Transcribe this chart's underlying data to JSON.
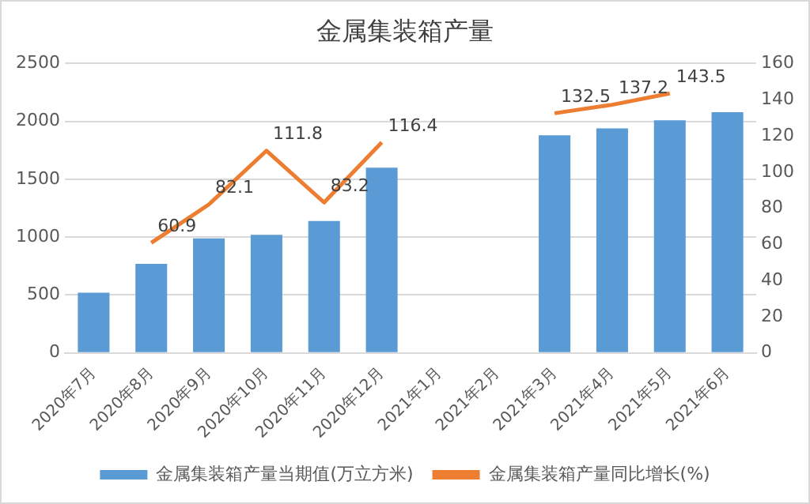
{
  "chart_data": {
    "type": "bar",
    "title": "金属集装箱产量",
    "categories": [
      "2020年7月",
      "2020年8月",
      "2020年9月",
      "2020年10月",
      "2020年11月",
      "2020年12月",
      "2021年1月",
      "2021年2月",
      "2021年3月",
      "2021年4月",
      "2021年5月",
      "2021年6月"
    ],
    "series": [
      {
        "name": "金属集装箱产量当期值(万立方米)",
        "color": "#5b9bd5",
        "values": [
          520,
          770,
          990,
          1020,
          1140,
          1600,
          null,
          null,
          1880,
          1940,
          2010,
          2080
        ]
      },
      {
        "name": "金属集装箱产量同比增长(%)",
        "type": "line",
        "axis": "y2",
        "color": "#ed7d31",
        "values": [
          null,
          60.9,
          82.1,
          111.8,
          83.2,
          116.4,
          null,
          null,
          132.5,
          137.2,
          143.5,
          null
        ],
        "value_labels": [
          null,
          "60.9",
          "82.1",
          "111.8",
          "83.2",
          "116.4",
          null,
          null,
          "132.5",
          "137.2",
          "143.5",
          null
        ]
      }
    ],
    "ylim": [
      0,
      2500
    ],
    "yticks": [
      0,
      500,
      1000,
      1500,
      2000,
      2500
    ],
    "y2lim": [
      0,
      160
    ],
    "y2ticks": [
      0,
      20,
      40,
      60,
      80,
      100,
      120,
      140,
      160
    ],
    "grid": "y",
    "legend": "bottom",
    "marker": "none"
  }
}
